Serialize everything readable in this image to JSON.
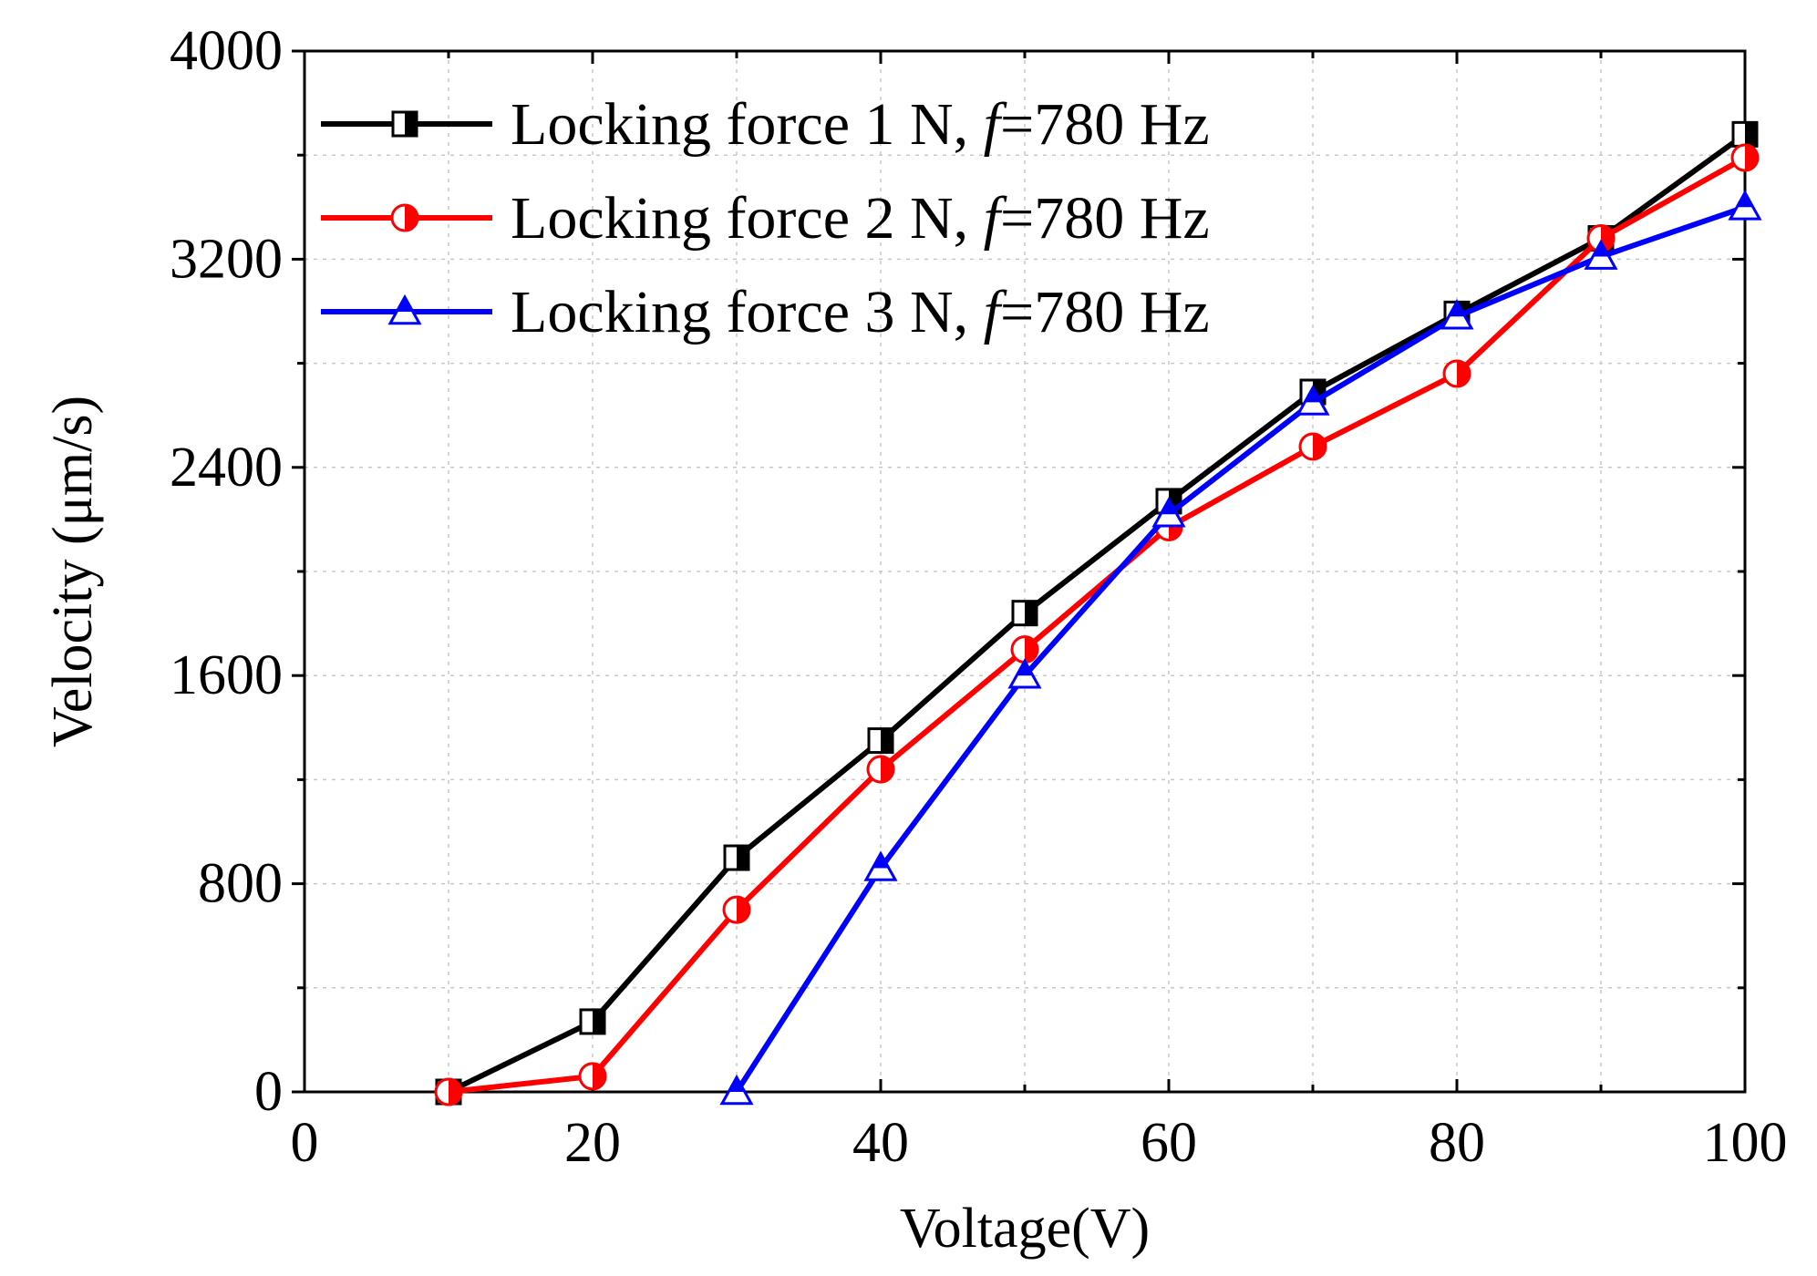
{
  "chart_data": {
    "type": "line",
    "title": "",
    "xlabel": "Voltage(V)",
    "ylabel": "Velocity (μm/s)",
    "xlim": [
      0,
      100
    ],
    "ylim": [
      0,
      4000
    ],
    "xticks": [
      0,
      20,
      40,
      60,
      80,
      100
    ],
    "yticks": [
      0,
      800,
      1600,
      2400,
      3200,
      4000
    ],
    "grid": true,
    "legend_position": "top-left",
    "series": [
      {
        "name_prefix": "Locking force 1 N, ",
        "name_italic": "f",
        "name_suffix": "=780 Hz",
        "color": "#000000",
        "marker": "half-filled-square",
        "x": [
          10,
          20,
          30,
          40,
          50,
          60,
          70,
          80,
          90,
          100
        ],
        "y": [
          0,
          270,
          900,
          1350,
          1840,
          2270,
          2690,
          2990,
          3280,
          3680
        ]
      },
      {
        "name_prefix": "Locking force 2 N, ",
        "name_italic": "f",
        "name_suffix": "=780 Hz",
        "color": "#ff0000",
        "marker": "half-filled-circle",
        "x": [
          10,
          20,
          30,
          40,
          50,
          60,
          70,
          80,
          90,
          100
        ],
        "y": [
          0,
          60,
          700,
          1240,
          1700,
          2170,
          2480,
          2760,
          3280,
          3590
        ]
      },
      {
        "name_prefix": "Locking force 3 N, ",
        "name_italic": "f",
        "name_suffix": "=780 Hz",
        "color": "#0000ff",
        "marker": "half-filled-triangle",
        "x": [
          30,
          40,
          50,
          60,
          70,
          80,
          90,
          100
        ],
        "y": [
          0,
          860,
          1600,
          2220,
          2650,
          2980,
          3210,
          3400
        ]
      }
    ]
  }
}
